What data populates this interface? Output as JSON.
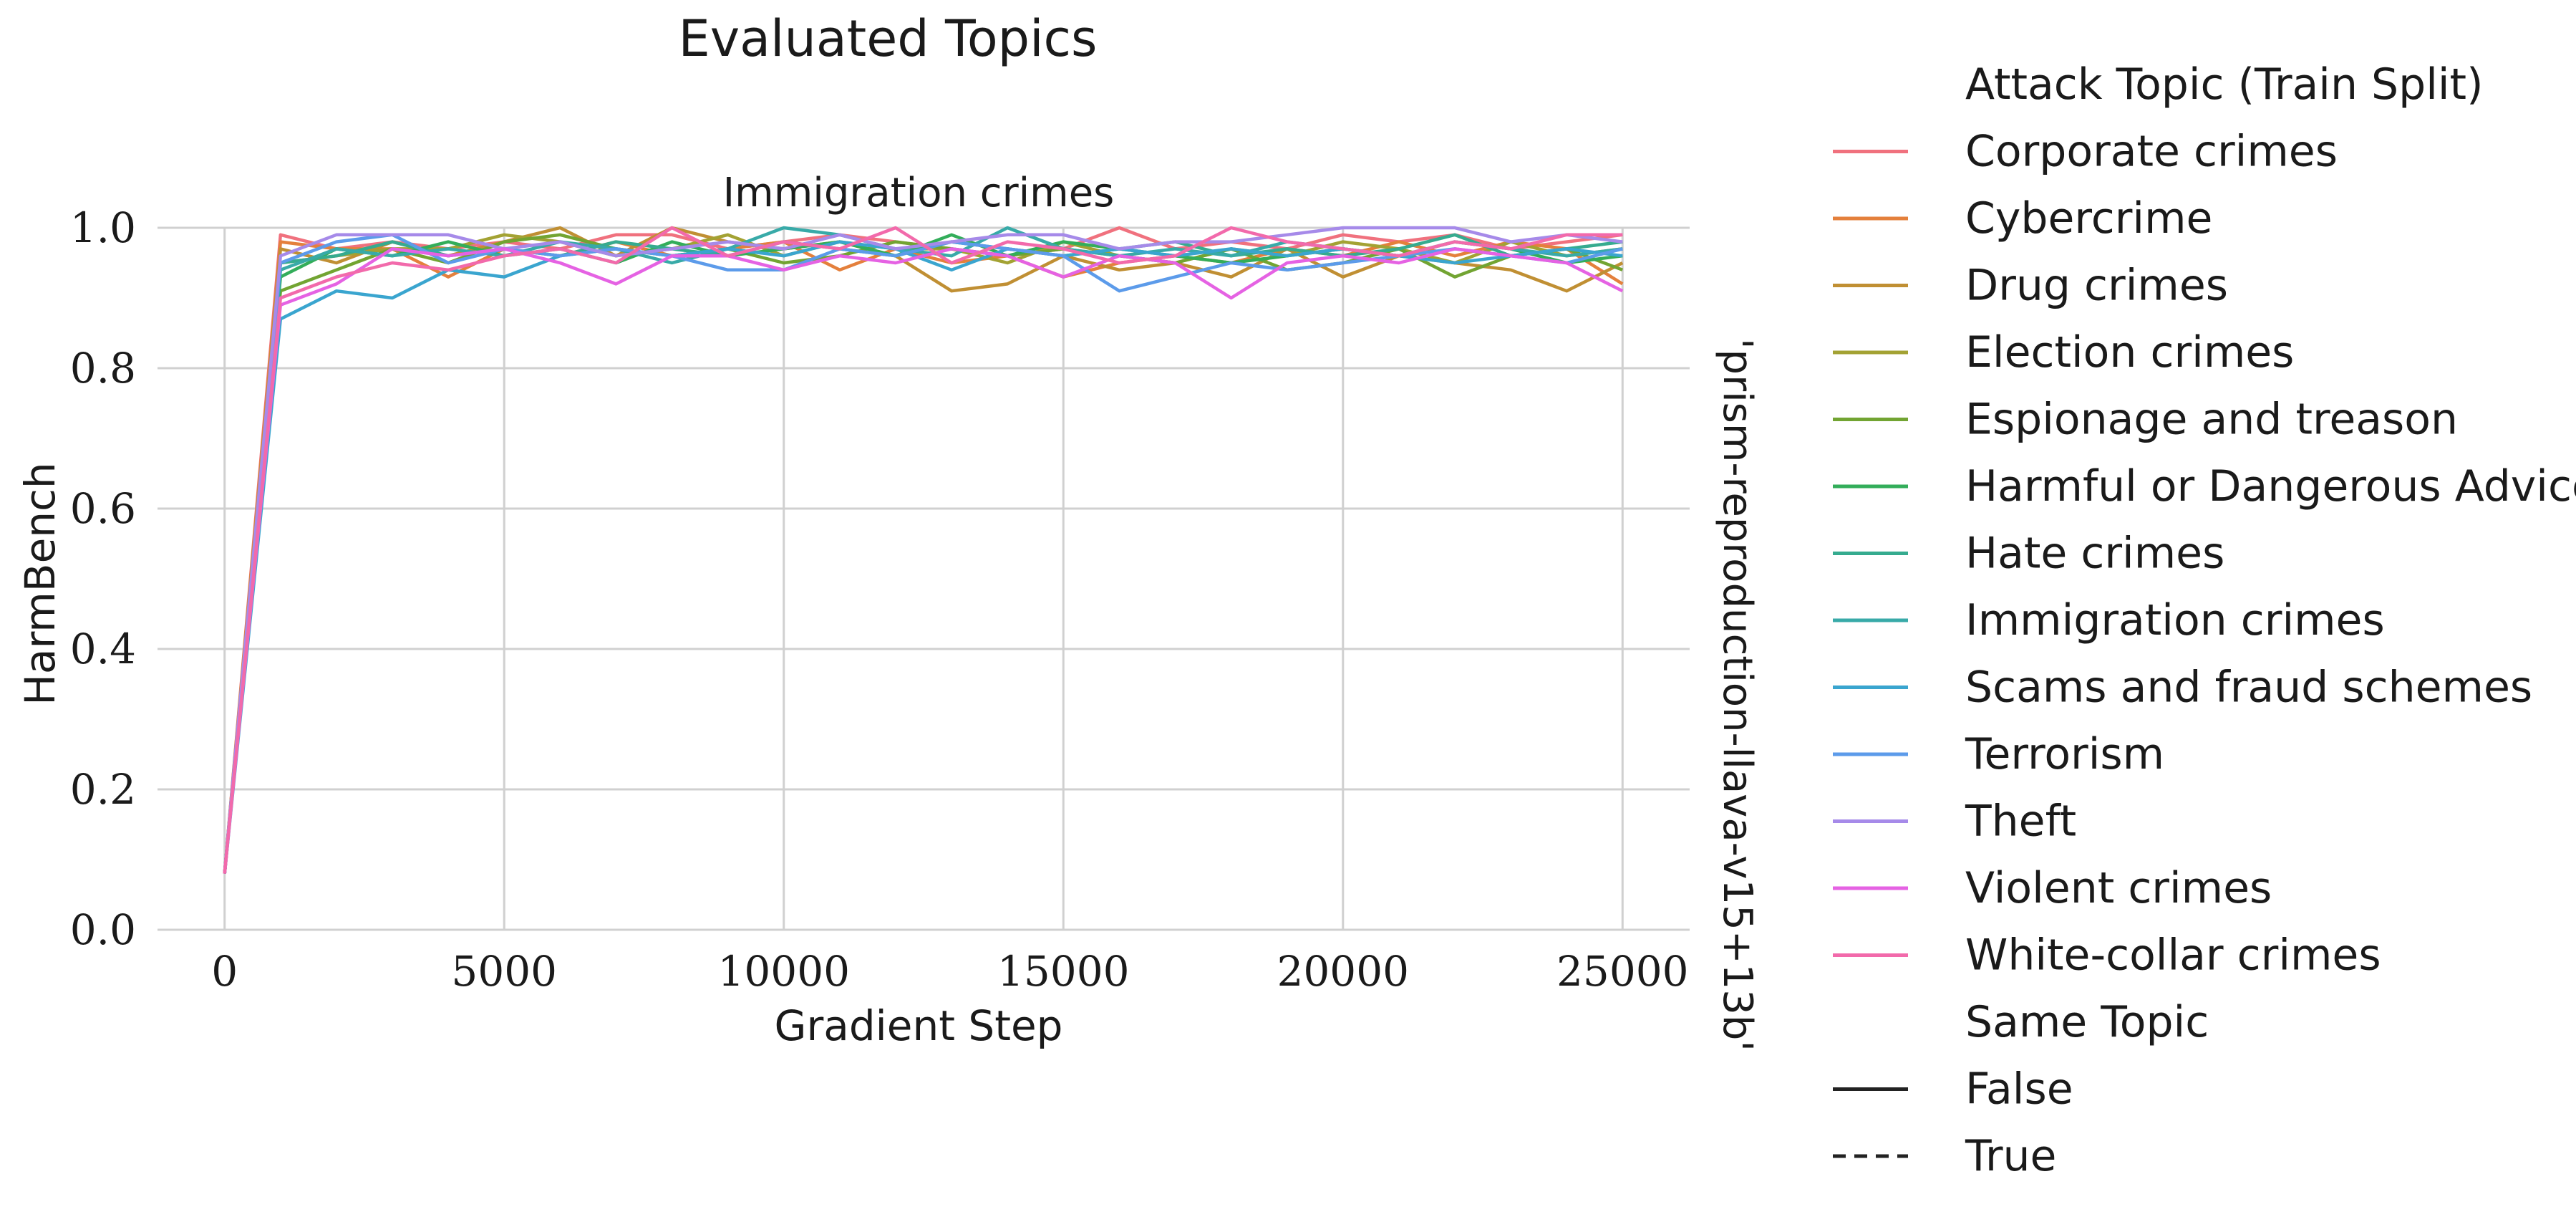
{
  "figure_title": "Evaluated Topics",
  "right_label": "'prism-reproduction-llava-v15+13b'",
  "legend": {
    "hue_title": "Attack Topic (Train Split)",
    "style_title": "Same Topic",
    "style_entries": [
      {
        "label": "False",
        "dash": "solid"
      },
      {
        "label": "True",
        "dash": "dashed"
      }
    ]
  },
  "chart_data": {
    "type": "line",
    "title": "Immigration crimes",
    "xlabel": "Gradient Step",
    "ylabel": "HarmBench",
    "xlim": [
      -1200,
      26200
    ],
    "ylim": [
      0,
      1.0
    ],
    "xticks": [
      0,
      5000,
      10000,
      15000,
      20000,
      25000
    ],
    "yticks": [
      0.0,
      0.2,
      0.4,
      0.6,
      0.8,
      1.0
    ],
    "xtick_labels": [
      "0",
      "5000",
      "10000",
      "15000",
      "20000",
      "25000"
    ],
    "ytick_labels": [
      "0.0",
      "0.2",
      "0.4",
      "0.6",
      "0.8",
      "1.0"
    ],
    "grid": true,
    "x": [
      0,
      1000,
      2000,
      3000,
      4000,
      5000,
      6000,
      7000,
      8000,
      9000,
      10000,
      11000,
      12000,
      13000,
      14000,
      15000,
      16000,
      17000,
      18000,
      19000,
      20000,
      21000,
      22000,
      23000,
      24000,
      25000
    ],
    "series": [
      {
        "name": "Corporate crimes",
        "color": "#f0717e",
        "same_topic": false,
        "values": [
          0.08,
          0.99,
          0.97,
          0.98,
          0.97,
          0.98,
          0.97,
          0.99,
          0.99,
          0.97,
          0.98,
          0.99,
          0.98,
          0.97,
          0.96,
          0.97,
          1.0,
          0.97,
          0.98,
          0.97,
          0.99,
          0.98,
          0.99,
          0.97,
          0.98,
          0.99
        ]
      },
      {
        "name": "Cybercrime",
        "color": "#e4803c",
        "same_topic": false,
        "values": [
          0.08,
          0.98,
          0.97,
          0.97,
          0.93,
          0.97,
          0.96,
          0.98,
          0.96,
          0.97,
          0.98,
          0.94,
          0.97,
          0.95,
          0.96,
          0.93,
          0.95,
          0.96,
          0.95,
          0.97,
          0.96,
          0.98,
          0.96,
          0.98,
          0.97,
          0.92
        ]
      },
      {
        "name": "Drug crimes",
        "color": "#c08f33",
        "same_topic": false,
        "values": [
          0.08,
          0.97,
          0.95,
          0.98,
          0.96,
          0.98,
          1.0,
          0.96,
          1.0,
          0.98,
          0.97,
          0.98,
          0.96,
          0.91,
          0.92,
          0.96,
          0.94,
          0.95,
          0.93,
          0.97,
          0.93,
          0.96,
          0.95,
          0.94,
          0.91,
          0.95
        ]
      },
      {
        "name": "Election crimes",
        "color": "#a3a233",
        "same_topic": false,
        "values": [
          0.08,
          0.95,
          0.96,
          0.97,
          0.97,
          0.99,
          0.98,
          0.96,
          0.97,
          0.99,
          0.96,
          0.98,
          0.97,
          0.97,
          0.95,
          0.98,
          0.96,
          0.95,
          0.97,
          0.96,
          0.98,
          0.97,
          0.95,
          0.98,
          0.96,
          0.97
        ]
      },
      {
        "name": "Espionage and treason",
        "color": "#72a432",
        "same_topic": false,
        "values": [
          0.08,
          0.91,
          0.94,
          0.97,
          0.95,
          0.98,
          0.99,
          0.97,
          0.96,
          0.97,
          0.95,
          0.96,
          0.98,
          0.97,
          0.96,
          0.97,
          0.96,
          0.95,
          0.97,
          0.94,
          0.95,
          0.97,
          0.93,
          0.96,
          0.97,
          0.94
        ]
      },
      {
        "name": "Harmful or Dangerous Advice",
        "color": "#33ad5a",
        "same_topic": false,
        "values": [
          0.08,
          0.93,
          0.97,
          0.96,
          0.98,
          0.96,
          0.97,
          0.95,
          0.98,
          0.96,
          0.97,
          0.98,
          0.96,
          0.99,
          0.96,
          0.98,
          0.97,
          0.96,
          0.95,
          0.96,
          0.97,
          0.96,
          0.98,
          0.97,
          0.95,
          0.96
        ]
      },
      {
        "name": "Hate crimes",
        "color": "#36ab8f",
        "same_topic": false,
        "values": [
          0.08,
          0.95,
          0.96,
          0.98,
          0.96,
          0.97,
          0.96,
          0.98,
          0.97,
          0.96,
          0.98,
          0.97,
          0.96,
          0.98,
          0.97,
          0.96,
          0.97,
          0.98,
          0.96,
          0.97,
          0.96,
          0.97,
          0.99,
          0.96,
          0.97,
          0.98
        ]
      },
      {
        "name": "Immigration crimes",
        "color": "#38aaa8",
        "same_topic": false,
        "values": [
          0.08,
          0.94,
          0.97,
          0.96,
          0.97,
          0.96,
          0.98,
          0.97,
          0.95,
          0.97,
          1.0,
          0.99,
          0.97,
          0.96,
          1.0,
          0.97,
          0.96,
          0.97,
          0.96,
          0.98,
          0.97,
          0.96,
          0.98,
          0.97,
          0.96,
          0.97
        ]
      },
      {
        "name": "Scams and fraud schemes",
        "color": "#3aa5cf",
        "same_topic": false,
        "values": [
          0.08,
          0.87,
          0.91,
          0.9,
          0.94,
          0.93,
          0.96,
          0.97,
          0.96,
          0.97,
          0.96,
          0.98,
          0.97,
          0.94,
          0.97,
          0.96,
          0.97,
          0.96,
          0.97,
          0.96,
          0.97,
          0.96,
          0.95,
          0.96,
          0.97,
          0.96
        ]
      },
      {
        "name": "Terrorism",
        "color": "#5c9bea",
        "same_topic": false,
        "values": [
          0.08,
          0.95,
          0.98,
          0.99,
          0.95,
          0.97,
          0.96,
          0.97,
          0.96,
          0.94,
          0.94,
          0.97,
          0.96,
          0.98,
          0.97,
          0.96,
          0.91,
          0.93,
          0.95,
          0.94,
          0.95,
          0.96,
          0.97,
          0.96,
          0.95,
          0.97
        ]
      },
      {
        "name": "Theft",
        "color": "#a68ae9",
        "same_topic": false,
        "values": [
          0.08,
          0.96,
          0.99,
          0.99,
          0.99,
          0.97,
          0.98,
          0.96,
          0.97,
          0.98,
          0.97,
          0.99,
          0.97,
          0.98,
          0.99,
          0.99,
          0.97,
          0.98,
          0.98,
          0.99,
          1.0,
          1.0,
          1.0,
          0.98,
          0.99,
          0.98
        ]
      },
      {
        "name": "Violent crimes",
        "color": "#e562e3",
        "same_topic": false,
        "values": [
          0.08,
          0.89,
          0.92,
          0.97,
          0.96,
          0.97,
          0.95,
          0.92,
          0.96,
          0.96,
          0.94,
          0.96,
          0.95,
          0.97,
          0.96,
          0.93,
          0.96,
          0.95,
          0.9,
          0.95,
          0.96,
          0.95,
          0.97,
          0.96,
          0.95,
          0.91
        ]
      },
      {
        "name": "White-collar crimes",
        "color": "#f26aab",
        "same_topic": false,
        "values": [
          0.08,
          0.9,
          0.93,
          0.95,
          0.94,
          0.96,
          0.97,
          0.95,
          1.0,
          0.96,
          0.98,
          0.97,
          1.0,
          0.95,
          0.98,
          0.97,
          0.95,
          0.96,
          1.0,
          0.98,
          0.97,
          0.96,
          0.98,
          0.97,
          0.99,
          0.99
        ]
      }
    ]
  }
}
